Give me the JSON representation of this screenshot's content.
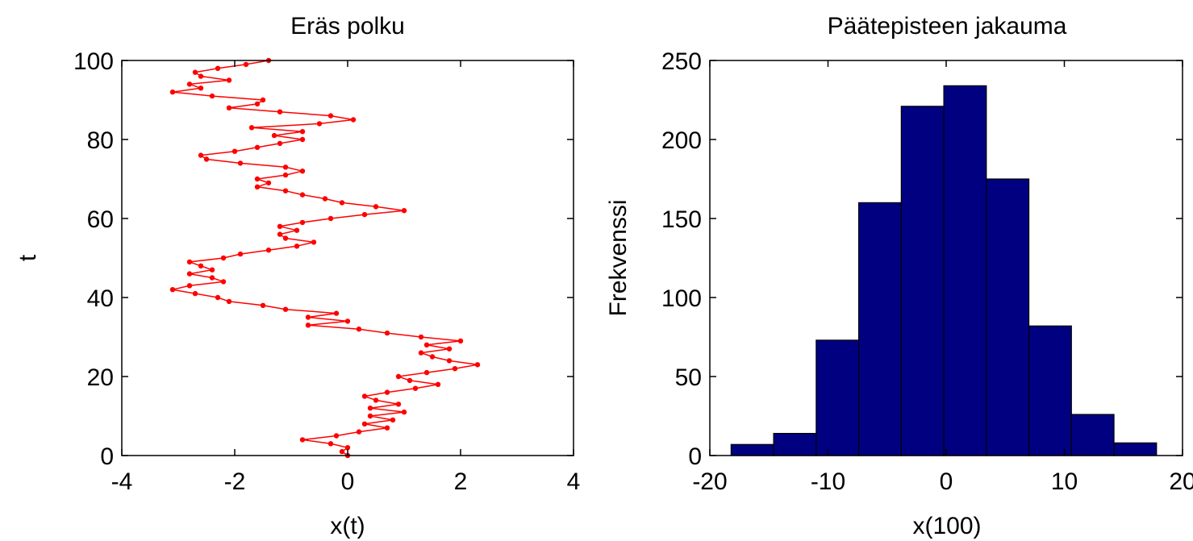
{
  "chart_data": [
    {
      "type": "line",
      "title": "Eräs polku",
      "xlabel": "x(t)",
      "ylabel": "t",
      "xlim": [
        -4,
        4
      ],
      "ylim": [
        0,
        100
      ],
      "xticks": [
        "-4",
        "-2",
        "0",
        "2",
        "4"
      ],
      "yticks": [
        "0",
        "20",
        "40",
        "60",
        "80",
        "100"
      ],
      "grid": false,
      "color": "#ff0000",
      "series": [
        {
          "points": [
            [
              0.0,
              0
            ],
            [
              -0.1,
              1
            ],
            [
              0.0,
              2
            ],
            [
              -0.3,
              3
            ],
            [
              -0.8,
              4
            ],
            [
              -0.2,
              5
            ],
            [
              0.2,
              6
            ],
            [
              0.7,
              7
            ],
            [
              0.3,
              8
            ],
            [
              0.8,
              9
            ],
            [
              0.4,
              10
            ],
            [
              1.0,
              11
            ],
            [
              0.4,
              12
            ],
            [
              0.9,
              13
            ],
            [
              0.5,
              14
            ],
            [
              0.3,
              15
            ],
            [
              0.7,
              16
            ],
            [
              1.2,
              17
            ],
            [
              1.6,
              18
            ],
            [
              1.1,
              19
            ],
            [
              0.9,
              20
            ],
            [
              1.4,
              21
            ],
            [
              1.9,
              22
            ],
            [
              2.3,
              23
            ],
            [
              1.8,
              24
            ],
            [
              1.5,
              25
            ],
            [
              1.3,
              26
            ],
            [
              1.8,
              27
            ],
            [
              1.4,
              28
            ],
            [
              2.0,
              29
            ],
            [
              1.3,
              30
            ],
            [
              0.7,
              31
            ],
            [
              0.2,
              32
            ],
            [
              -0.7,
              33
            ],
            [
              0.0,
              34
            ],
            [
              -0.7,
              35
            ],
            [
              -0.2,
              36
            ],
            [
              -1.1,
              37
            ],
            [
              -1.5,
              38
            ],
            [
              -2.1,
              39
            ],
            [
              -2.3,
              40
            ],
            [
              -2.7,
              41
            ],
            [
              -3.1,
              42
            ],
            [
              -2.8,
              43
            ],
            [
              -2.2,
              44
            ],
            [
              -2.4,
              45
            ],
            [
              -2.8,
              46
            ],
            [
              -2.4,
              47
            ],
            [
              -2.6,
              48
            ],
            [
              -2.8,
              49
            ],
            [
              -2.2,
              50
            ],
            [
              -1.9,
              51
            ],
            [
              -1.4,
              52
            ],
            [
              -0.9,
              53
            ],
            [
              -0.6,
              54
            ],
            [
              -1.1,
              55
            ],
            [
              -1.2,
              56
            ],
            [
              -0.9,
              57
            ],
            [
              -1.2,
              58
            ],
            [
              -0.8,
              59
            ],
            [
              -0.3,
              60
            ],
            [
              0.3,
              61
            ],
            [
              1.0,
              62
            ],
            [
              0.5,
              63
            ],
            [
              -0.1,
              64
            ],
            [
              -0.4,
              65
            ],
            [
              -0.8,
              66
            ],
            [
              -1.1,
              67
            ],
            [
              -1.6,
              68
            ],
            [
              -1.4,
              69
            ],
            [
              -1.6,
              70
            ],
            [
              -1.1,
              71
            ],
            [
              -0.8,
              72
            ],
            [
              -1.1,
              73
            ],
            [
              -1.9,
              74
            ],
            [
              -2.5,
              75
            ],
            [
              -2.6,
              76
            ],
            [
              -2.0,
              77
            ],
            [
              -1.6,
              78
            ],
            [
              -1.2,
              79
            ],
            [
              -0.8,
              80
            ],
            [
              -1.3,
              81
            ],
            [
              -0.8,
              82
            ],
            [
              -1.7,
              83
            ],
            [
              -0.5,
              84
            ],
            [
              0.1,
              85
            ],
            [
              -0.3,
              86
            ],
            [
              -1.2,
              87
            ],
            [
              -2.1,
              88
            ],
            [
              -1.6,
              89
            ],
            [
              -1.5,
              90
            ],
            [
              -2.4,
              91
            ],
            [
              -3.1,
              92
            ],
            [
              -2.6,
              93
            ],
            [
              -2.8,
              94
            ],
            [
              -2.1,
              95
            ],
            [
              -2.6,
              96
            ],
            [
              -2.7,
              97
            ],
            [
              -2.3,
              98
            ],
            [
              -1.8,
              99
            ],
            [
              -1.4,
              100
            ]
          ]
        }
      ]
    },
    {
      "type": "bar",
      "title": "Päätepisteen jakauma",
      "xlabel": "x(100)",
      "ylabel": "Frekvenssi",
      "xlim": [
        -20,
        20
      ],
      "ylim": [
        0,
        250
      ],
      "xticks": [
        "-20",
        "-10",
        "0",
        "10",
        "20"
      ],
      "yticks": [
        "0",
        "50",
        "100",
        "150",
        "200",
        "250"
      ],
      "grid": false,
      "color": "#000080",
      "bin_centers": [
        -16.4,
        -12.8,
        -9.2,
        -5.6,
        -2.0,
        1.6,
        5.2,
        8.8,
        12.4,
        16.0
      ],
      "bin_width": 3.6,
      "values": [
        7,
        14,
        73,
        160,
        221,
        234,
        175,
        82,
        26,
        8
      ]
    }
  ]
}
